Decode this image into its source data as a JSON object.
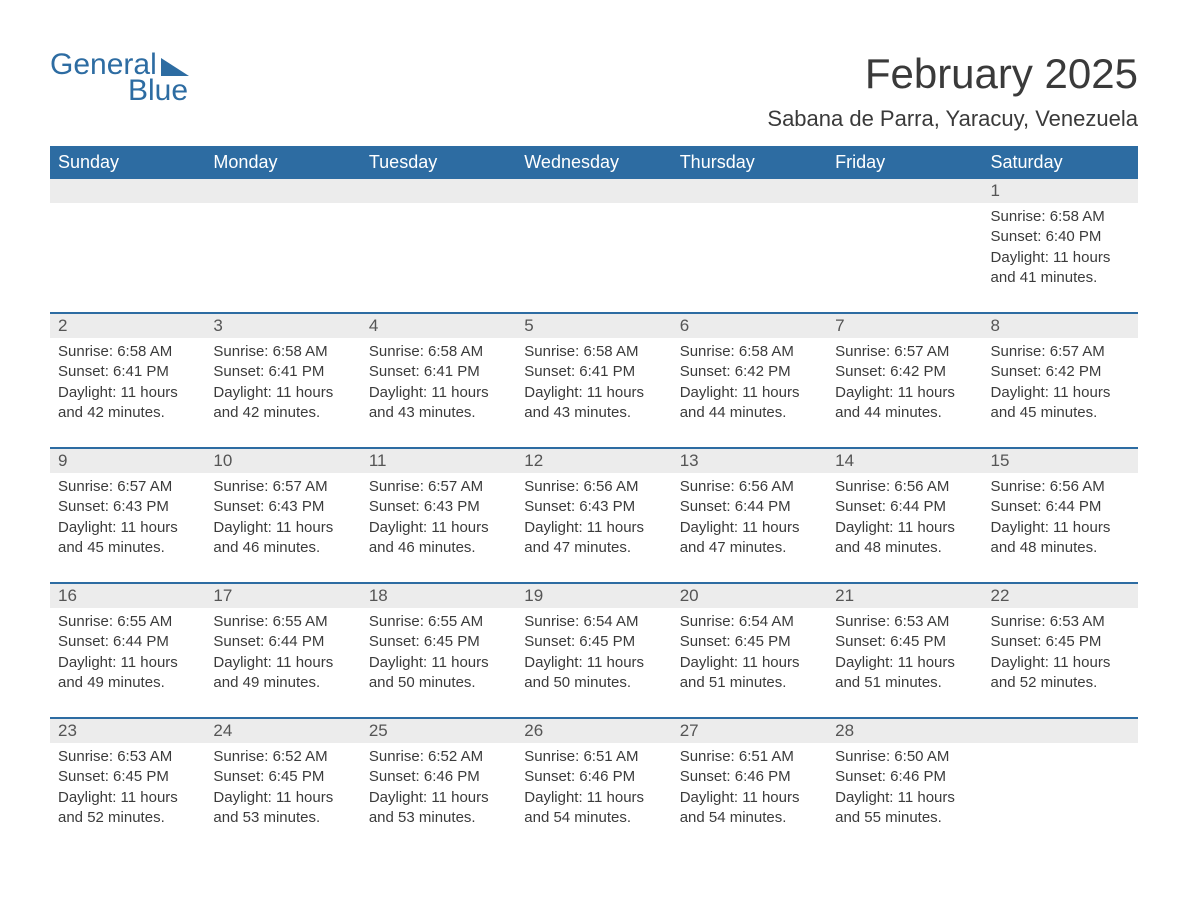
{
  "brand": {
    "word1": "General",
    "word2": "Blue"
  },
  "title": "February 2025",
  "location": "Sabana de Parra, Yaracuy, Venezuela",
  "colors": {
    "brand_blue": "#2d6ca2",
    "header_bg": "#2d6ca2",
    "header_text": "#ffffff",
    "daynum_bg": "#ececec",
    "text": "#3b3b3b",
    "page_bg": "#ffffff"
  },
  "fonts": {
    "title_size_pt": 32,
    "location_size_pt": 17,
    "header_size_pt": 14,
    "body_size_pt": 11
  },
  "layout": {
    "columns": 7,
    "first_day_column_index": 6,
    "days_in_month": 28
  },
  "weekdays": [
    "Sunday",
    "Monday",
    "Tuesday",
    "Wednesday",
    "Thursday",
    "Friday",
    "Saturday"
  ],
  "days": [
    {
      "n": 1,
      "sunrise": "6:58 AM",
      "sunset": "6:40 PM",
      "daylight": "11 hours and 41 minutes."
    },
    {
      "n": 2,
      "sunrise": "6:58 AM",
      "sunset": "6:41 PM",
      "daylight": "11 hours and 42 minutes."
    },
    {
      "n": 3,
      "sunrise": "6:58 AM",
      "sunset": "6:41 PM",
      "daylight": "11 hours and 42 minutes."
    },
    {
      "n": 4,
      "sunrise": "6:58 AM",
      "sunset": "6:41 PM",
      "daylight": "11 hours and 43 minutes."
    },
    {
      "n": 5,
      "sunrise": "6:58 AM",
      "sunset": "6:41 PM",
      "daylight": "11 hours and 43 minutes."
    },
    {
      "n": 6,
      "sunrise": "6:58 AM",
      "sunset": "6:42 PM",
      "daylight": "11 hours and 44 minutes."
    },
    {
      "n": 7,
      "sunrise": "6:57 AM",
      "sunset": "6:42 PM",
      "daylight": "11 hours and 44 minutes."
    },
    {
      "n": 8,
      "sunrise": "6:57 AM",
      "sunset": "6:42 PM",
      "daylight": "11 hours and 45 minutes."
    },
    {
      "n": 9,
      "sunrise": "6:57 AM",
      "sunset": "6:43 PM",
      "daylight": "11 hours and 45 minutes."
    },
    {
      "n": 10,
      "sunrise": "6:57 AM",
      "sunset": "6:43 PM",
      "daylight": "11 hours and 46 minutes."
    },
    {
      "n": 11,
      "sunrise": "6:57 AM",
      "sunset": "6:43 PM",
      "daylight": "11 hours and 46 minutes."
    },
    {
      "n": 12,
      "sunrise": "6:56 AM",
      "sunset": "6:43 PM",
      "daylight": "11 hours and 47 minutes."
    },
    {
      "n": 13,
      "sunrise": "6:56 AM",
      "sunset": "6:44 PM",
      "daylight": "11 hours and 47 minutes."
    },
    {
      "n": 14,
      "sunrise": "6:56 AM",
      "sunset": "6:44 PM",
      "daylight": "11 hours and 48 minutes."
    },
    {
      "n": 15,
      "sunrise": "6:56 AM",
      "sunset": "6:44 PM",
      "daylight": "11 hours and 48 minutes."
    },
    {
      "n": 16,
      "sunrise": "6:55 AM",
      "sunset": "6:44 PM",
      "daylight": "11 hours and 49 minutes."
    },
    {
      "n": 17,
      "sunrise": "6:55 AM",
      "sunset": "6:44 PM",
      "daylight": "11 hours and 49 minutes."
    },
    {
      "n": 18,
      "sunrise": "6:55 AM",
      "sunset": "6:45 PM",
      "daylight": "11 hours and 50 minutes."
    },
    {
      "n": 19,
      "sunrise": "6:54 AM",
      "sunset": "6:45 PM",
      "daylight": "11 hours and 50 minutes."
    },
    {
      "n": 20,
      "sunrise": "6:54 AM",
      "sunset": "6:45 PM",
      "daylight": "11 hours and 51 minutes."
    },
    {
      "n": 21,
      "sunrise": "6:53 AM",
      "sunset": "6:45 PM",
      "daylight": "11 hours and 51 minutes."
    },
    {
      "n": 22,
      "sunrise": "6:53 AM",
      "sunset": "6:45 PM",
      "daylight": "11 hours and 52 minutes."
    },
    {
      "n": 23,
      "sunrise": "6:53 AM",
      "sunset": "6:45 PM",
      "daylight": "11 hours and 52 minutes."
    },
    {
      "n": 24,
      "sunrise": "6:52 AM",
      "sunset": "6:45 PM",
      "daylight": "11 hours and 53 minutes."
    },
    {
      "n": 25,
      "sunrise": "6:52 AM",
      "sunset": "6:46 PM",
      "daylight": "11 hours and 53 minutes."
    },
    {
      "n": 26,
      "sunrise": "6:51 AM",
      "sunset": "6:46 PM",
      "daylight": "11 hours and 54 minutes."
    },
    {
      "n": 27,
      "sunrise": "6:51 AM",
      "sunset": "6:46 PM",
      "daylight": "11 hours and 54 minutes."
    },
    {
      "n": 28,
      "sunrise": "6:50 AM",
      "sunset": "6:46 PM",
      "daylight": "11 hours and 55 minutes."
    }
  ],
  "labels": {
    "sunrise_prefix": "Sunrise: ",
    "sunset_prefix": "Sunset: ",
    "daylight_prefix": "Daylight: "
  }
}
